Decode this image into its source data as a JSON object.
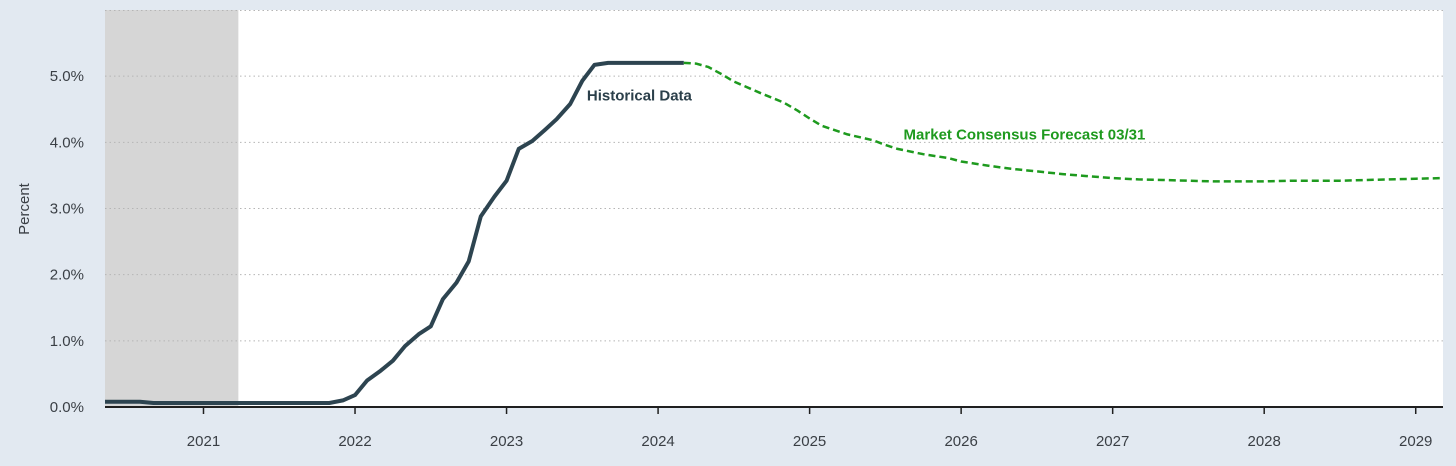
{
  "chart_data": {
    "type": "line",
    "ylabel": "Percent",
    "xlabel": "",
    "ylim": [
      0,
      6.0
    ],
    "xlim": [
      2020.35,
      2029.18
    ],
    "y_ticks": [
      0,
      1,
      2,
      3,
      4,
      5
    ],
    "y_tick_labels": [
      "0.0%",
      "1.0%",
      "2.0%",
      "3.0%",
      "4.0%",
      "5.0%"
    ],
    "x_ticks": [
      2021,
      2022,
      2023,
      2024,
      2025,
      2026,
      2027,
      2028,
      2029
    ],
    "x_tick_labels": [
      "2021",
      "2022",
      "2023",
      "2024",
      "2025",
      "2026",
      "2027",
      "2028",
      "2029"
    ],
    "grid": true,
    "shaded_region": {
      "x0": 2020.35,
      "x1": 2021.23,
      "color": "#d6d6d6"
    },
    "annotations": [
      {
        "text": "Historical Data",
        "x": 2023.53,
        "y": 4.63,
        "series": "historical"
      },
      {
        "text": "Market Consensus Forecast 03/31",
        "x": 2025.62,
        "y": 4.04,
        "series": "forecast"
      }
    ],
    "series": [
      {
        "id": "historical",
        "style": "solid",
        "color": "#2d4450",
        "points": [
          [
            2020.35,
            0.08
          ],
          [
            2020.58,
            0.08
          ],
          [
            2020.67,
            0.06
          ],
          [
            2021.0,
            0.06
          ],
          [
            2021.5,
            0.06
          ],
          [
            2021.83,
            0.06
          ],
          [
            2021.92,
            0.1
          ],
          [
            2022.0,
            0.18
          ],
          [
            2022.08,
            0.4
          ],
          [
            2022.17,
            0.55
          ],
          [
            2022.25,
            0.7
          ],
          [
            2022.33,
            0.92
          ],
          [
            2022.42,
            1.1
          ],
          [
            2022.5,
            1.22
          ],
          [
            2022.58,
            1.63
          ],
          [
            2022.67,
            1.88
          ],
          [
            2022.75,
            2.2
          ],
          [
            2022.83,
            2.88
          ],
          [
            2022.92,
            3.18
          ],
          [
            2023.0,
            3.42
          ],
          [
            2023.08,
            3.9
          ],
          [
            2023.17,
            4.02
          ],
          [
            2023.25,
            4.18
          ],
          [
            2023.33,
            4.35
          ],
          [
            2023.42,
            4.58
          ],
          [
            2023.5,
            4.93
          ],
          [
            2023.58,
            5.17
          ],
          [
            2023.67,
            5.2
          ],
          [
            2023.75,
            5.2
          ],
          [
            2024.0,
            5.2
          ],
          [
            2024.17,
            5.2
          ]
        ]
      },
      {
        "id": "forecast",
        "style": "dashed",
        "color": "#1e9a1e",
        "points": [
          [
            2024.17,
            5.2
          ],
          [
            2024.25,
            5.19
          ],
          [
            2024.33,
            5.14
          ],
          [
            2024.42,
            5.03
          ],
          [
            2024.5,
            4.92
          ],
          [
            2024.67,
            4.75
          ],
          [
            2024.83,
            4.6
          ],
          [
            2024.92,
            4.48
          ],
          [
            2025.0,
            4.36
          ],
          [
            2025.08,
            4.25
          ],
          [
            2025.25,
            4.12
          ],
          [
            2025.42,
            4.03
          ],
          [
            2025.5,
            3.96
          ],
          [
            2025.58,
            3.9
          ],
          [
            2025.75,
            3.82
          ],
          [
            2025.92,
            3.76
          ],
          [
            2026.0,
            3.71
          ],
          [
            2026.17,
            3.65
          ],
          [
            2026.33,
            3.6
          ],
          [
            2026.5,
            3.56
          ],
          [
            2026.67,
            3.52
          ],
          [
            2026.83,
            3.49
          ],
          [
            2027.0,
            3.46
          ],
          [
            2027.17,
            3.44
          ],
          [
            2027.33,
            3.43
          ],
          [
            2027.5,
            3.42
          ],
          [
            2027.67,
            3.41
          ],
          [
            2027.83,
            3.41
          ],
          [
            2028.0,
            3.41
          ],
          [
            2028.17,
            3.42
          ],
          [
            2028.33,
            3.42
          ],
          [
            2028.5,
            3.42
          ],
          [
            2028.67,
            3.43
          ],
          [
            2028.83,
            3.44
          ],
          [
            2029.0,
            3.45
          ],
          [
            2029.18,
            3.46
          ]
        ]
      }
    ]
  }
}
